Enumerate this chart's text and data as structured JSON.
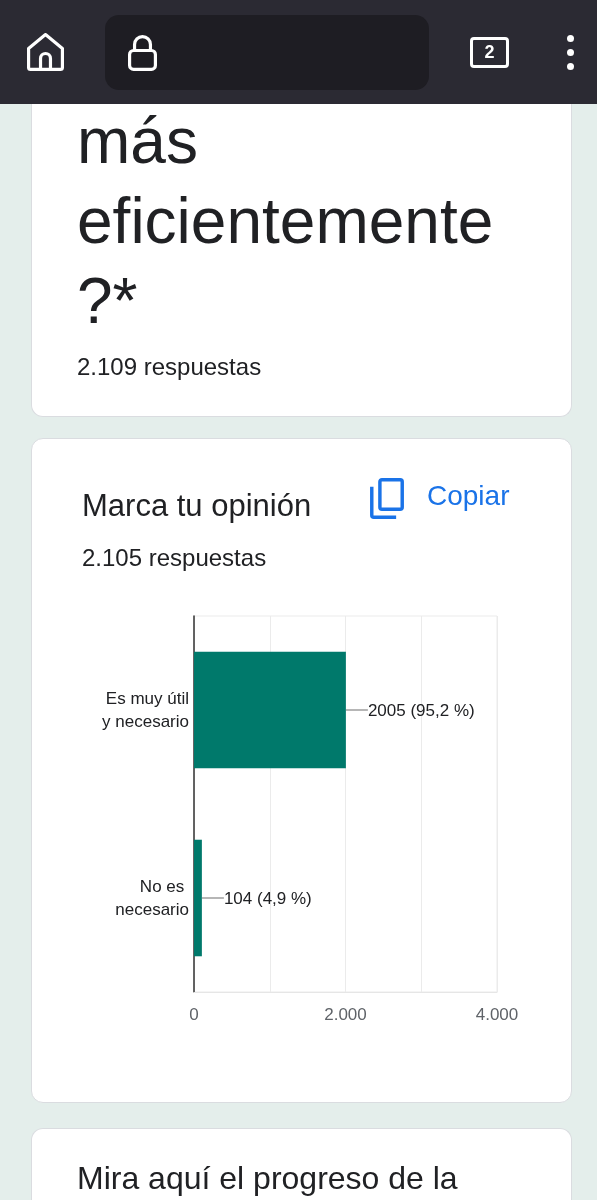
{
  "chart_data": {
    "type": "bar",
    "orientation": "horizontal",
    "title": "Marca tu opinión",
    "subtitle": "2.105 respuestas",
    "categories": [
      "Es muy útil y necesario",
      "No es necesario"
    ],
    "values": [
      2005,
      104
    ],
    "color": "#00796b",
    "value_labels": [
      "2005 (95,2 %)",
      "104 (4,9 %)"
    ],
    "xlim": [
      0,
      4000
    ],
    "xticks": [
      0,
      {
        "value": 1000,
        "label": null
      },
      {
        "value": 2000,
        "label": "2.000"
      },
      {
        "value": 3000,
        "label": null
      },
      {
        "value": 4000,
        "label": "4.000"
      }
    ],
    "grid": "x",
    "annotations": [
      "más eficientemente ?*",
      "2.109 respuestas",
      "Copiar",
      "Mira aquí el progreso de la",
      "2"
    ]
  }
}
